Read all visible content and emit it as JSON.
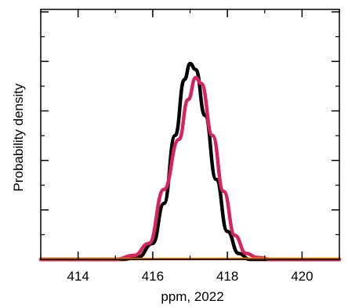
{
  "chart_data": {
    "type": "line",
    "title": "",
    "xlabel": "ppm, 2022",
    "ylabel": "Probability density",
    "xlim": [
      413,
      421
    ],
    "x_ticks": [
      414,
      416,
      418,
      420
    ],
    "x_tick_labels": [
      "414",
      "416",
      "418",
      "420"
    ],
    "y_ticks_count": 5,
    "y_tick_labels_shown": false,
    "grid": false,
    "legend": "none",
    "series": [
      {
        "color": "#000000",
        "x": [
          413,
          415.2,
          415.6,
          416.0,
          416.3,
          416.6,
          416.85,
          417.0,
          417.15,
          417.4,
          417.7,
          418.0,
          418.3,
          418.6,
          419.0,
          421
        ],
        "y": [
          0.0,
          0.0,
          0.01,
          0.08,
          0.28,
          0.62,
          0.9,
          0.98,
          0.95,
          0.72,
          0.4,
          0.14,
          0.03,
          0.0,
          0.0,
          0.0
        ]
      },
      {
        "color": "#d6245f",
        "x": [
          413,
          415.0,
          415.5,
          415.9,
          416.3,
          416.7,
          416.95,
          417.15,
          417.3,
          417.6,
          417.9,
          418.2,
          418.5,
          418.8,
          419.2,
          421
        ],
        "y": [
          0.0,
          0.0,
          0.02,
          0.08,
          0.35,
          0.6,
          0.8,
          0.91,
          0.88,
          0.62,
          0.34,
          0.12,
          0.03,
          0.01,
          0.0,
          0.0
        ]
      },
      {
        "color": "#f5b800",
        "x": [
          413,
          421
        ],
        "y": [
          0.002,
          0.004
        ]
      },
      {
        "color": "#e8660e",
        "x": [
          413,
          421
        ],
        "y": [
          0.001,
          0.002
        ]
      }
    ]
  }
}
